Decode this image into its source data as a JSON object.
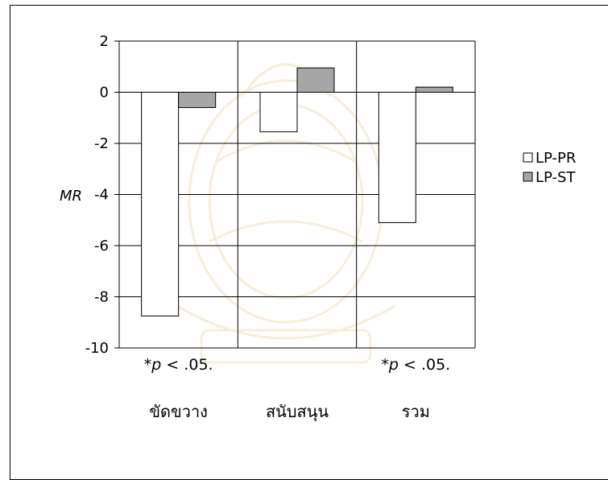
{
  "chart_data": {
    "type": "bar",
    "categories": [
      "ขัดขวาง",
      "สนับสนุน",
      "รวม"
    ],
    "series": [
      {
        "name": "LP-PR",
        "values": [
          -8.75,
          -1.55,
          -5.1
        ]
      },
      {
        "name": "LP-ST",
        "values": [
          -0.6,
          0.95,
          0.2
        ]
      }
    ],
    "ylabel_prefix": "",
    "ylabel": "MR",
    "ylim": [
      -10,
      2
    ],
    "yticks": [
      "2",
      "0",
      "-2",
      "-4",
      "-6",
      "-8",
      "-10"
    ],
    "legend_position": "right",
    "grid": true,
    "notes": [
      {
        "category_index": 0,
        "prefix": "*",
        "italic": "p",
        "suffix": " < .05."
      },
      {
        "category_index": 2,
        "prefix": "*",
        "italic": "p",
        "suffix": " < .05."
      }
    ],
    "colors": {
      "LP-PR": "#ffffff",
      "LP-ST": "#a6a6a6",
      "grid": "#000000",
      "plot_bg": "#ffffff"
    }
  }
}
